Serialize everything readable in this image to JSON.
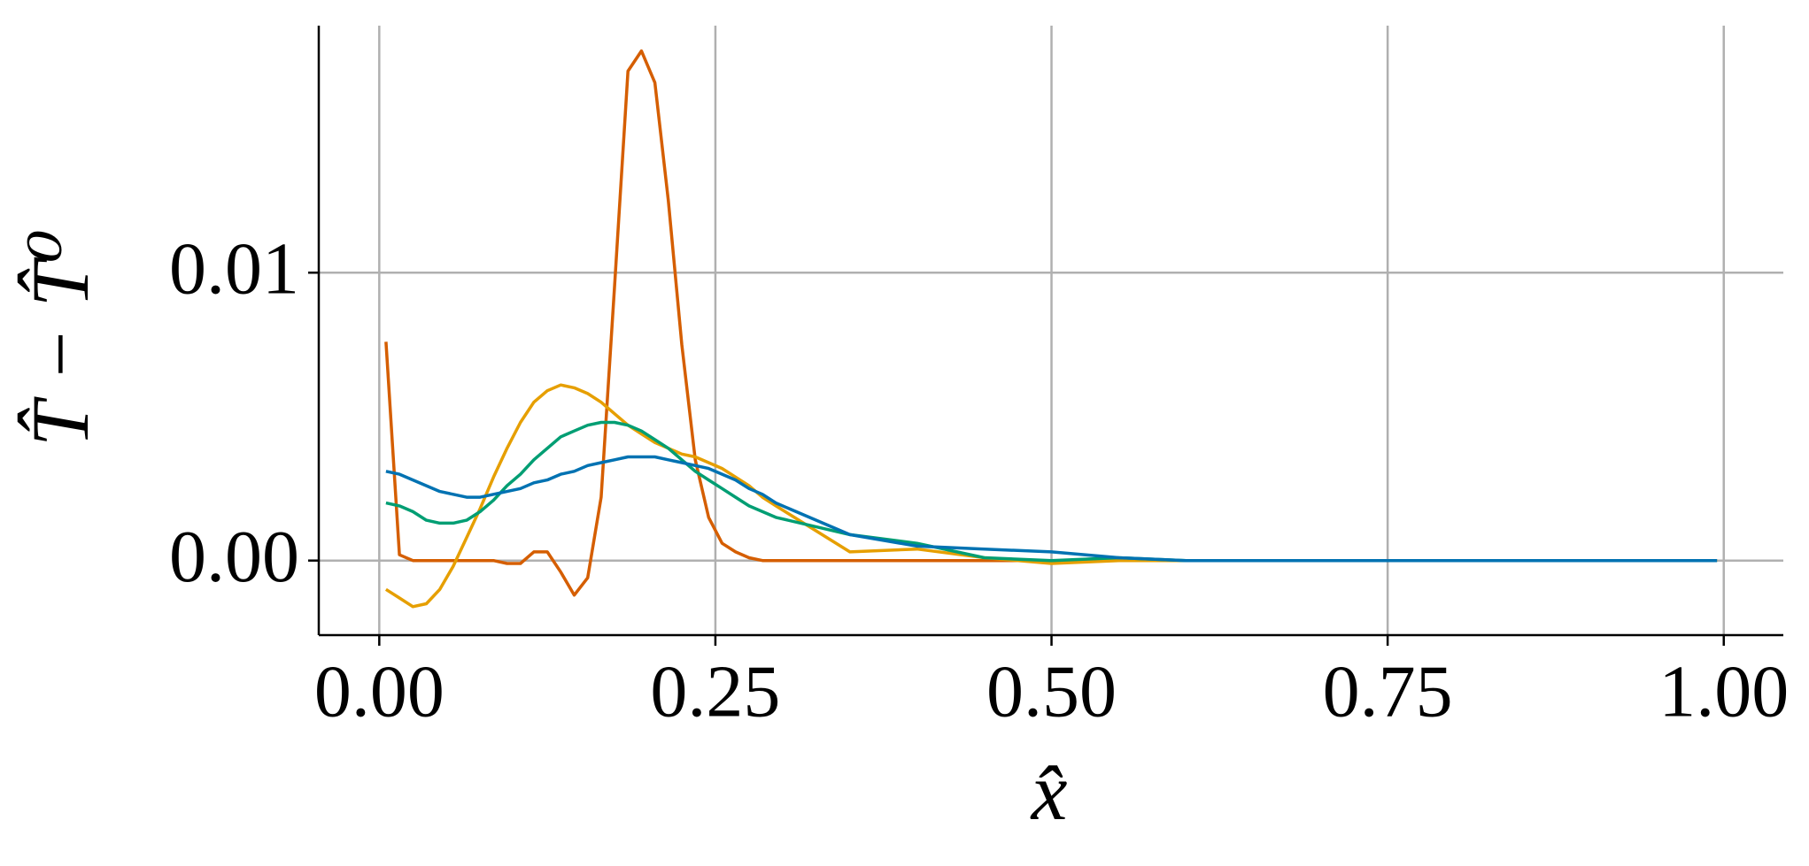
{
  "chart_data": {
    "type": "line",
    "x_label": "x̂",
    "y_label": "T̂ − T̂⁰",
    "x": [
      0.005,
      0.015,
      0.025,
      0.035,
      0.045,
      0.055,
      0.065,
      0.075,
      0.085,
      0.095,
      0.105,
      0.115,
      0.125,
      0.135,
      0.145,
      0.155,
      0.165,
      0.175,
      0.185,
      0.195,
      0.205,
      0.215,
      0.225,
      0.235,
      0.245,
      0.255,
      0.265,
      0.275,
      0.285,
      0.295,
      0.35,
      0.4,
      0.45,
      0.5,
      0.55,
      0.6,
      0.65,
      0.7,
      0.75,
      0.8,
      0.85,
      0.9,
      0.995
    ],
    "series": [
      {
        "color": "#d55e00",
        "values": [
          0.0076,
          0.0002,
          0,
          0,
          0,
          0,
          0,
          0,
          0,
          -0.0001,
          -0.0001,
          0.0003,
          0.0003,
          -0.0004,
          -0.0012,
          -0.0006,
          0.0022,
          0.0095,
          0.017,
          0.0177,
          0.0166,
          0.0125,
          0.0075,
          0.0035,
          0.0015,
          0.0006,
          0.0003,
          0.0001,
          0,
          0,
          0,
          0,
          0,
          0,
          0,
          0,
          0,
          0,
          0,
          0,
          0,
          0,
          0
        ]
      },
      {
        "color": "#e69f00",
        "values": [
          -0.001,
          -0.0013,
          -0.0016,
          -0.0015,
          -0.001,
          -0.0002,
          0.0008,
          0.0018,
          0.0029,
          0.0039,
          0.0048,
          0.0055,
          0.0059,
          0.0061,
          0.006,
          0.0058,
          0.0055,
          0.0051,
          0.0047,
          0.0044,
          0.0041,
          0.0039,
          0.0037,
          0.0036,
          0.0034,
          0.0032,
          0.0029,
          0.0026,
          0.0022,
          0.0019,
          0.0003,
          0.0004,
          0.0001,
          -0.0001,
          0,
          0,
          0,
          0,
          0,
          0,
          0,
          0,
          0
        ]
      },
      {
        "color": "#009e73",
        "values": [
          0.002,
          0.0019,
          0.0017,
          0.0014,
          0.0013,
          0.0013,
          0.0014,
          0.0017,
          0.0021,
          0.0026,
          0.003,
          0.0035,
          0.0039,
          0.0043,
          0.0045,
          0.0047,
          0.0048,
          0.0048,
          0.0047,
          0.0045,
          0.0042,
          0.0039,
          0.0035,
          0.0031,
          0.0028,
          0.0025,
          0.0022,
          0.0019,
          0.0017,
          0.0015,
          0.0009,
          0.0006,
          0.0001,
          0,
          0.0001,
          0,
          0,
          0,
          0,
          0,
          0,
          0,
          0
        ]
      },
      {
        "color": "#0072b2",
        "values": [
          0.0031,
          0.003,
          0.0028,
          0.0026,
          0.0024,
          0.0023,
          0.0022,
          0.0022,
          0.0023,
          0.0024,
          0.0025,
          0.0027,
          0.0028,
          0.003,
          0.0031,
          0.0033,
          0.0034,
          0.0035,
          0.0036,
          0.0036,
          0.0036,
          0.0035,
          0.0034,
          0.0033,
          0.0032,
          0.003,
          0.0028,
          0.0025,
          0.0023,
          0.002,
          0.0009,
          0.0005,
          0.0004,
          0.0003,
          0.0001,
          0,
          0,
          0,
          0,
          0,
          0,
          0,
          0
        ]
      }
    ],
    "xlim": [
      -0.045,
      1.0443
    ],
    "ylim": [
      -0.00259,
      0.01858
    ],
    "xticks": [
      {
        "value": 0,
        "label": "0.00"
      },
      {
        "value": 0.25,
        "label": "0.25"
      },
      {
        "value": 0.5,
        "label": "0.50"
      },
      {
        "value": 0.75,
        "label": "0.75"
      },
      {
        "value": 1,
        "label": "1.00"
      }
    ],
    "yticks": [
      {
        "value": 0,
        "label": "0.00"
      },
      {
        "value": 0.01,
        "label": "0.01"
      }
    ],
    "grid": true
  }
}
